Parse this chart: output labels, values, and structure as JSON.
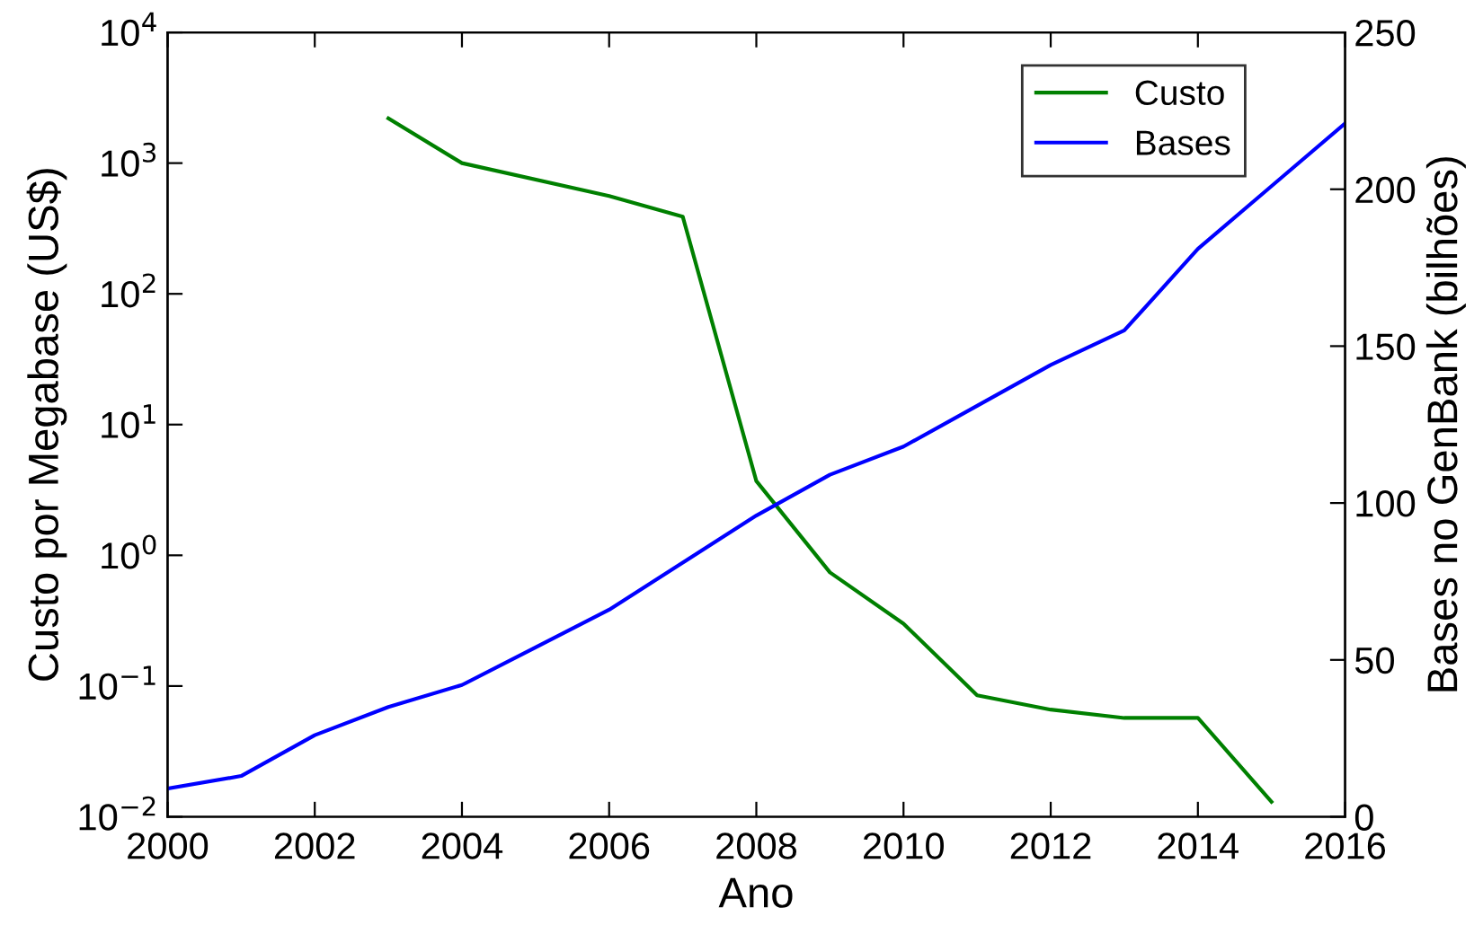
{
  "chart_data": {
    "type": "line",
    "xlabel": "Ano",
    "ylabel": "Custo por Megabase (US$)",
    "y2label": "Bases no GenBank (bilhões)",
    "log": "y",
    "legend": "top right",
    "grid": false,
    "xlim": [
      2000,
      2016
    ],
    "xticks": [
      2000,
      2002,
      2004,
      2006,
      2008,
      2010,
      2012,
      2014,
      2016
    ],
    "ylim": [
      0.01,
      10000
    ],
    "yticks": [
      {
        "value": 0.01,
        "label": "10$^{−2}$"
      },
      {
        "value": 0.1,
        "label": "10$^{−1}$"
      },
      {
        "value": 1,
        "label": "10$^{0}$"
      },
      {
        "value": 10,
        "label": "10$^{1}$"
      },
      {
        "value": 100,
        "label": "10$^{2}$"
      },
      {
        "value": 1000,
        "label": "10$^{3}$"
      },
      {
        "value": 10000,
        "label": "10$^{4}$"
      }
    ],
    "y2lim": [
      0,
      250
    ],
    "y2ticks": [
      0,
      50,
      100,
      150,
      200,
      250
    ],
    "series": [
      {
        "name": "Custo",
        "color": "#008000",
        "x": [
          2003,
          2004,
          2006,
          2007,
          2008,
          2009,
          2010,
          2011,
          2012,
          2013,
          2014,
          2015
        ],
        "values": [
          2200,
          1000,
          560,
          390,
          3.7,
          0.74,
          0.3,
          0.085,
          0.066,
          0.057,
          0.057,
          0.013
        ]
      },
      {
        "name": "Bases",
        "color": "#0000ff",
        "axis": "y2",
        "x": [
          2000,
          2001,
          2002,
          2003,
          2004,
          2005,
          2006,
          2007,
          2008,
          2009,
          2010,
          2011,
          2012,
          2013,
          2014,
          2015,
          2016
        ],
        "values": [
          9,
          13,
          26,
          35,
          42,
          54,
          66,
          81,
          96,
          109,
          118,
          131,
          144,
          155,
          181,
          201,
          221
        ]
      }
    ]
  }
}
